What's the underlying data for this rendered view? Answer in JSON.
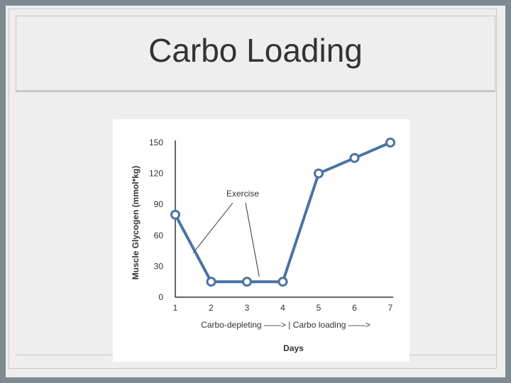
{
  "slide": {
    "title": "Carbo Loading"
  },
  "colors": {
    "line": "#4a73a3",
    "marker_fill": "#ffffff",
    "axis": "#333333",
    "background": "#eeeeee",
    "frame": "#7e8a93"
  },
  "chart_data": {
    "type": "line",
    "xlabel": "Days",
    "ylabel": "Muscle Glycogen (mmol*kg)",
    "x": [
      1,
      2,
      3,
      4,
      5,
      6,
      7
    ],
    "series": [
      {
        "values": [
          80,
          15,
          15,
          15,
          120,
          135,
          150
        ]
      }
    ],
    "xlim": [
      1,
      7
    ],
    "ylim": [
      0,
      150
    ],
    "yticks": [
      0,
      30,
      60,
      90,
      120,
      150
    ],
    "xtick_labels": [
      "1",
      "2",
      "3",
      "4",
      "5",
      "6",
      "7"
    ],
    "ytick_labels": [
      "0",
      "30",
      "60",
      "90",
      "120",
      "150"
    ],
    "phase_label": "Carbo-depleting ——> | Carbo loading ——>",
    "annotation": {
      "text": "Exercise",
      "points_to_days": [
        1.5,
        3.5
      ]
    },
    "grid": false,
    "legend": false
  }
}
